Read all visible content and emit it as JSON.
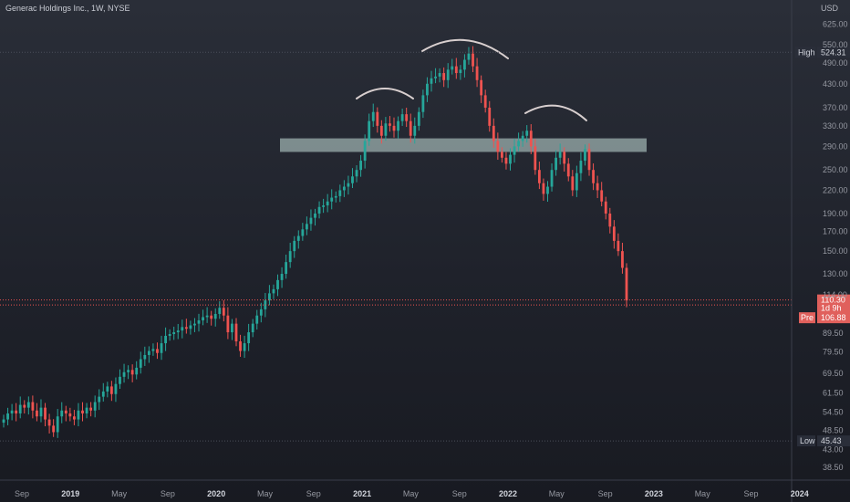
{
  "chart_data": {
    "type": "candlestick",
    "title": "Generac Holdings Inc., 1W, NYSE",
    "currency": "USD",
    "y_scale": "log",
    "ylim": [
      35.5,
      680
    ],
    "y_ticks": [
      "38.50",
      "43.00",
      "48.50",
      "54.50",
      "61.50",
      "69.50",
      "79.50",
      "89.50",
      "114.00",
      "130.00",
      "150.00",
      "170.00",
      "190.00",
      "220.00",
      "250.00",
      "290.00",
      "330.00",
      "370.00",
      "430.00",
      "490.00",
      "550.00",
      "625.00"
    ],
    "x_ticks": [
      "Sep",
      "2019",
      "May",
      "Sep",
      "2020",
      "May",
      "Sep",
      "2021",
      "May",
      "Sep",
      "2022",
      "May",
      "Sep",
      "2023",
      "May",
      "Sep",
      "2024"
    ],
    "price_labels": {
      "high_label": "High",
      "high_value": "524.31",
      "low_label": "Low",
      "low_value": "45.43",
      "last_top": "110.30",
      "last_countdown": "1d 9h",
      "pre_label": "Pre",
      "pre_value": "106.88"
    },
    "resistance_band": [
      280,
      305
    ],
    "high_level": 524.31,
    "low_level": 45.43,
    "last_level": 110.3,
    "pre_level": 106.88,
    "up_color": "#26a69a",
    "down_color": "#ef5350",
    "band_color": "#9fb4b3",
    "arc_color": "#d8cfcf",
    "weekly_closes": [
      52,
      54,
      55,
      54,
      57,
      56,
      58,
      55,
      53,
      56,
      52,
      50,
      48,
      53,
      55,
      54,
      53,
      52,
      55,
      54,
      56,
      55,
      58,
      60,
      62,
      64,
      61,
      65,
      68,
      70,
      71,
      69,
      72,
      76,
      78,
      80,
      81,
      79,
      84,
      88,
      89,
      90,
      91,
      93,
      92,
      94,
      95,
      97,
      99,
      100,
      98,
      101,
      105,
      100,
      90,
      95,
      85,
      80,
      84,
      90,
      95,
      100,
      104,
      110,
      115,
      118,
      125,
      130,
      140,
      150,
      160,
      165,
      172,
      178,
      185,
      190,
      198,
      200,
      205,
      210,
      212,
      220,
      225,
      230,
      240,
      250,
      265,
      300,
      340,
      360,
      330,
      310,
      335,
      330,
      320,
      340,
      355,
      340,
      310,
      330,
      360,
      400,
      430,
      445,
      450,
      460,
      440,
      470,
      480,
      460,
      470,
      500,
      520,
      480,
      440,
      400,
      370,
      330,
      300,
      280,
      270,
      260,
      275,
      290,
      300,
      310,
      320,
      290,
      250,
      230,
      215,
      225,
      250,
      270,
      280,
      260,
      240,
      220,
      245,
      265,
      285,
      250,
      230,
      220,
      205,
      190,
      175,
      160,
      150,
      135,
      110
    ]
  }
}
